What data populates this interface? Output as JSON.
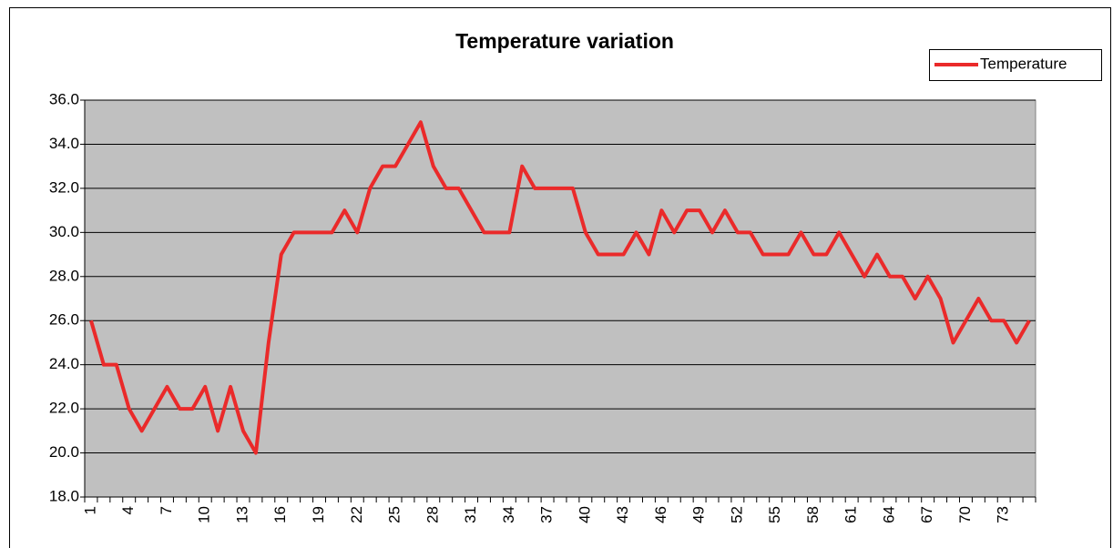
{
  "chart_data": {
    "type": "line",
    "title": "Temperature variation",
    "categories": [
      "1",
      null,
      null,
      "4",
      null,
      null,
      "7",
      null,
      null,
      "10",
      null,
      null,
      "13",
      null,
      null,
      "16",
      null,
      null,
      "19",
      null,
      null,
      "22",
      null,
      null,
      "25",
      null,
      null,
      "28",
      null,
      null,
      "31",
      null,
      null,
      "34",
      null,
      null,
      "37",
      null,
      null,
      "40",
      null,
      null,
      "43",
      null,
      null,
      "46",
      null,
      null,
      "49",
      null,
      null,
      "52",
      null,
      null,
      "55",
      null,
      null,
      "58",
      null,
      null,
      "61",
      null,
      null,
      "64",
      null,
      null,
      "67",
      null,
      null,
      "70",
      null,
      null,
      "73",
      null,
      null
    ],
    "series": [
      {
        "name": "Temperature",
        "color": "#ea2a2a",
        "values": [
          26,
          24,
          24,
          22,
          21,
          22,
          23,
          22,
          22,
          23,
          21,
          23,
          21,
          20,
          25,
          29,
          30,
          30,
          30,
          30,
          31,
          30,
          32,
          33,
          33,
          34,
          35,
          33,
          32,
          32,
          31,
          30,
          30,
          30,
          33,
          32,
          32,
          32,
          32,
          30,
          29,
          29,
          29,
          30,
          29,
          31,
          30,
          31,
          31,
          30,
          31,
          30,
          30,
          29,
          29,
          29,
          30,
          29,
          29,
          30,
          29,
          28,
          29,
          28,
          28,
          27,
          28,
          27,
          25,
          26,
          27,
          26,
          26,
          25,
          26
        ]
      }
    ],
    "ylim": [
      18,
      36
    ],
    "yticks": [
      {
        "value": 18,
        "label": "18.0"
      },
      {
        "value": 20,
        "label": "20.0"
      },
      {
        "value": 22,
        "label": "22.0"
      },
      {
        "value": 24,
        "label": "24.0"
      },
      {
        "value": 26,
        "label": "26.0"
      },
      {
        "value": 28,
        "label": "28.0"
      },
      {
        "value": 30,
        "label": "30.0"
      },
      {
        "value": 32,
        "label": "32.0"
      },
      {
        "value": 34,
        "label": "34.0"
      },
      {
        "value": 36,
        "label": "36.0"
      }
    ],
    "grid": true,
    "legend": "top-right",
    "plot_background": "#c0c0c0"
  }
}
